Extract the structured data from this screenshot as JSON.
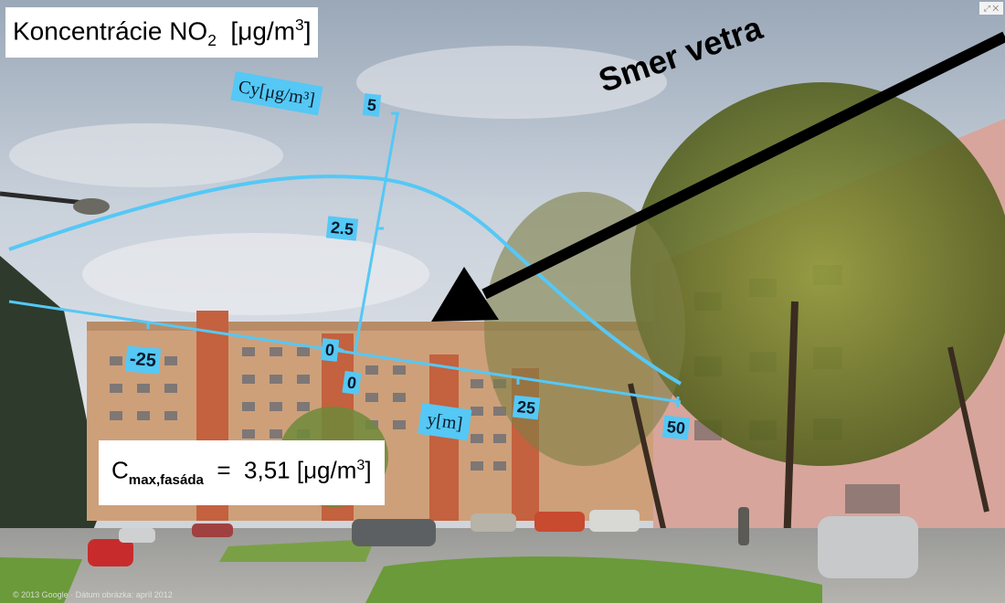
{
  "title": {
    "text": "Koncentrácie NO",
    "sub": "2",
    "unit_prefix": "  [μg/m",
    "unit_sup": "3",
    "unit_suffix": "]"
  },
  "wind_label": "Smer vetra",
  "cmax": {
    "prefix": "C",
    "sub": "max,fasáda",
    "value": "  =  3,51 [μg/m",
    "sup": "3",
    "suffix": "]"
  },
  "axes": {
    "cy_label": "Cy[μg/m³]",
    "cy_ticks": [
      "5",
      "2.5",
      "0"
    ],
    "y_label": "y[m]",
    "y_ticks": [
      "-25",
      "0",
      "25",
      "50"
    ]
  },
  "footer": "© 2013 Google · Dátum obrázka: apríl 2012",
  "corner_icon": "expand-icon",
  "colors": {
    "overlay": "#55c8f5",
    "curve": "#55c8f5",
    "arrow": "#000000"
  }
}
